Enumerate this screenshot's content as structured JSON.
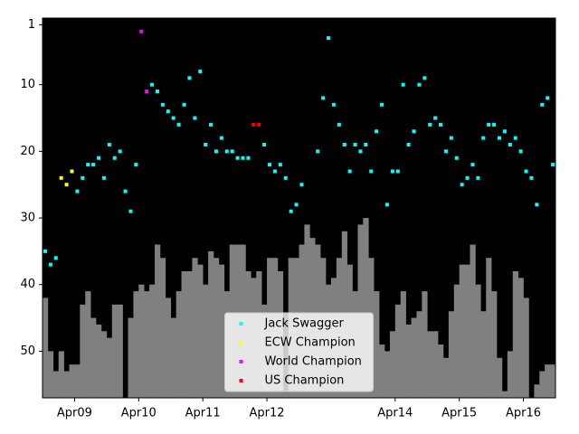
{
  "chart_data": {
    "type": "scatter",
    "x": [
      "2008-10",
      "2008-11",
      "2008-12",
      "2009-01",
      "2009-02",
      "2009-03",
      "2009-04",
      "2009-05",
      "2009-06",
      "2009-07",
      "2009-08",
      "2009-09",
      "2009-10",
      "2009-11",
      "2009-12",
      "2010-01",
      "2010-02",
      "2010-03",
      "2010-04",
      "2010-05",
      "2010-06",
      "2010-07",
      "2010-08",
      "2010-09",
      "2010-10",
      "2010-11",
      "2010-12",
      "2011-01",
      "2011-02",
      "2011-03",
      "2011-04",
      "2011-05",
      "2011-06",
      "2011-07",
      "2011-08",
      "2011-09",
      "2011-10",
      "2011-11",
      "2011-12",
      "2012-01",
      "2012-02",
      "2012-03",
      "2012-04",
      "2012-05",
      "2012-06",
      "2012-07",
      "2012-08",
      "2012-09",
      "2012-10",
      "2012-11",
      "2012-12",
      "2013-01",
      "2013-02",
      "2013-03",
      "2013-04",
      "2013-05",
      "2013-06",
      "2013-07",
      "2013-08",
      "2013-09",
      "2013-10",
      "2013-11",
      "2013-12",
      "2014-01",
      "2014-02",
      "2014-03",
      "2014-04",
      "2014-05",
      "2014-06",
      "2014-07",
      "2014-08",
      "2014-09",
      "2014-10",
      "2014-11",
      "2014-12",
      "2015-01",
      "2015-02",
      "2015-03",
      "2015-04",
      "2015-05",
      "2015-06",
      "2015-07",
      "2015-08",
      "2015-09",
      "2015-10",
      "2015-11",
      "2015-12",
      "2016-01",
      "2016-02",
      "2016-03",
      "2016-04",
      "2016-05",
      "2016-06",
      "2016-07",
      "2016-08",
      "2016-09"
    ],
    "bars": {
      "color": "#808080",
      "values": [
        42,
        50,
        53,
        50,
        53,
        52,
        52,
        43,
        41,
        45,
        46,
        47,
        48,
        43,
        43,
        null,
        45,
        41,
        40,
        41,
        40,
        34,
        36,
        42,
        45,
        41,
        38,
        38,
        36,
        37,
        40,
        35,
        36,
        37,
        41,
        34,
        34,
        34,
        38,
        39,
        38,
        43,
        36,
        36,
        38,
        56,
        36,
        36,
        34,
        31,
        33,
        34,
        36,
        40,
        39,
        36,
        32,
        37,
        41,
        31,
        30,
        36,
        41,
        49,
        50,
        47,
        43,
        41,
        46,
        45,
        44,
        41,
        47,
        47,
        49,
        51,
        44,
        40,
        37,
        37,
        34,
        40,
        44,
        36,
        41,
        51,
        56,
        50,
        38,
        39,
        42,
        null,
        55,
        53,
        52,
        52
      ]
    },
    "series": [
      {
        "name": "Jack Swagger",
        "color": "#00ffff",
        "values": [
          35,
          37,
          36,
          null,
          null,
          null,
          26,
          24,
          22,
          22,
          21,
          24,
          19,
          21,
          20,
          26,
          29,
          22,
          null,
          null,
          10,
          11,
          13,
          14,
          15,
          16,
          13,
          9,
          15,
          8,
          19,
          16,
          20,
          18,
          20,
          20,
          21,
          21,
          21,
          null,
          null,
          19,
          22,
          23,
          22,
          24,
          29,
          28,
          25,
          null,
          null,
          20,
          12,
          3,
          13,
          16,
          19,
          23,
          19,
          20,
          19,
          23,
          17,
          13,
          28,
          23,
          23,
          10,
          19,
          17,
          10,
          9,
          16,
          15,
          16,
          20,
          18,
          21,
          25,
          24,
          22,
          24,
          18,
          16,
          16,
          18,
          17,
          19,
          18,
          20,
          23,
          24,
          28,
          13,
          12,
          22
        ]
      },
      {
        "name": "ECW Champion",
        "color": "#ffff00",
        "x": [
          "2009-01",
          "2009-02",
          "2009-03"
        ],
        "values": [
          24,
          25,
          23
        ]
      },
      {
        "name": "World Champion",
        "color": "#ff00ff",
        "x": [
          "2010-04",
          "2010-05"
        ],
        "values": [
          2,
          11
        ]
      },
      {
        "name": "US Champion",
        "color": "#ff0000",
        "x": [
          "2012-01",
          "2012-02"
        ],
        "values": [
          16,
          16
        ]
      }
    ],
    "ylim": [
      0,
      57
    ],
    "y_inverted": true,
    "yticks": [
      1,
      10,
      20,
      30,
      40,
      50
    ],
    "xticks": [
      {
        "value": "2009-04",
        "label": "Apr09"
      },
      {
        "value": "2010-04",
        "label": "Apr10"
      },
      {
        "value": "2011-04",
        "label": "Apr11"
      },
      {
        "value": "2012-04",
        "label": "Apr12"
      },
      {
        "value": "2014-04",
        "label": "Apr14"
      },
      {
        "value": "2015-04",
        "label": "Apr15"
      },
      {
        "value": "2016-04",
        "label": "Apr16"
      }
    ],
    "background": "#000000",
    "legend_loc": "lower center"
  }
}
